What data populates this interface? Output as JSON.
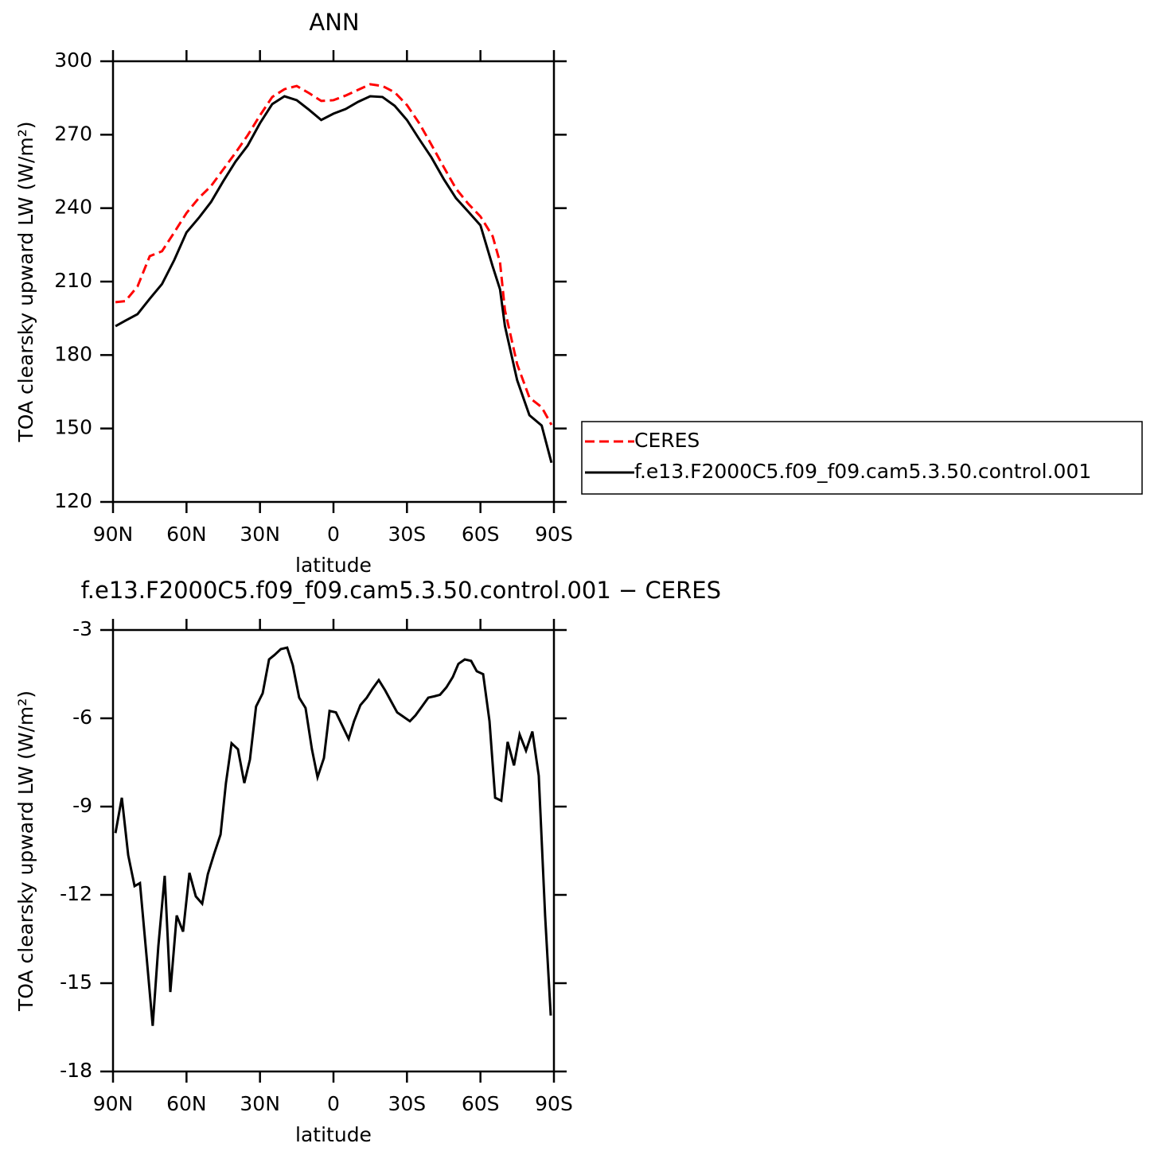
{
  "chart_data": [
    {
      "type": "line",
      "title": "ANN",
      "xlabel": "latitude",
      "ylabel": "TOA clearsky upward LW (W/m²)",
      "xlim": [
        90,
        -90
      ],
      "xticks": [
        {
          "value": 90,
          "label": "90N"
        },
        {
          "value": 60,
          "label": "60N"
        },
        {
          "value": 30,
          "label": "30N"
        },
        0,
        {
          "value": -30,
          "label": "30S"
        },
        {
          "value": -60,
          "label": "60S"
        },
        {
          "value": -90,
          "label": "90S"
        }
      ],
      "ylim": [
        120,
        300
      ],
      "yticks": [
        120,
        150,
        180,
        210,
        240,
        270,
        300
      ],
      "legend": "right",
      "x": [
        89,
        85,
        80,
        75,
        70,
        65,
        60,
        55,
        50,
        45,
        40,
        35,
        30,
        25,
        20,
        15,
        10,
        5,
        0,
        -5,
        -10,
        -15,
        -20,
        -25,
        -30,
        -35,
        -40,
        -45,
        -50,
        -55,
        -60,
        -65,
        -68,
        -70,
        -75,
        -80,
        -85,
        -89
      ],
      "series": [
        {
          "name": "CERES",
          "color": "#ff0000",
          "dash": true,
          "values": [
            201.6,
            202,
            208,
            220.4,
            222.4,
            230.1,
            238,
            244.1,
            249,
            255.8,
            262.6,
            269.8,
            277.9,
            285.4,
            288.6,
            289.9,
            287,
            283.8,
            284.1,
            286,
            288.3,
            290.6,
            289.9,
            287.3,
            282.1,
            274.7,
            265.9,
            256.8,
            248,
            241.8,
            236.6,
            228.5,
            217.8,
            198.3,
            176.2,
            162.6,
            158.7,
            151.5
          ]
        },
        {
          "name": "f.e13.F2000C5.f09_f09.cam5.3.50.control.001",
          "color": "#000000",
          "dash": false,
          "values": [
            191.8,
            194,
            196.7,
            203,
            209,
            218.8,
            230.1,
            236,
            242.5,
            251,
            259,
            265.6,
            274.7,
            282.5,
            285.7,
            284.1,
            280.2,
            276,
            278.6,
            280.5,
            283.4,
            285.7,
            285.4,
            281.8,
            276,
            268.2,
            260.7,
            251.9,
            244.1,
            238.6,
            233,
            216.2,
            206.8,
            191.8,
            169.7,
            155.4,
            151.2,
            136
          ]
        }
      ]
    },
    {
      "type": "line",
      "title": "f.e13.F2000C5.f09_f09.cam5.3.50.control.001 − CERES",
      "xlabel": "latitude",
      "ylabel": "TOA clearsky upward LW (W/m²)",
      "xlim": [
        90,
        -90
      ],
      "xticks": [
        {
          "value": 90,
          "label": "90N"
        },
        {
          "value": 60,
          "label": "60N"
        },
        {
          "value": 30,
          "label": "30N"
        },
        0,
        {
          "value": -30,
          "label": "30S"
        },
        {
          "value": -60,
          "label": "60S"
        },
        {
          "value": -90,
          "label": "90S"
        }
      ],
      "ylim": [
        -18,
        -3
      ],
      "yticks": [
        -18,
        -15,
        -12,
        -9,
        -6,
        -3
      ],
      "x": [
        89,
        86.4,
        83.8,
        81.2,
        79,
        76.4,
        73.8,
        71.5,
        68.9,
        66.6,
        64,
        61.4,
        58.8,
        56.2,
        53.6,
        51.3,
        48.7,
        46.1,
        43.9,
        41.6,
        39,
        36.4,
        34.1,
        31.6,
        28.9,
        26.3,
        24.1,
        21.5,
        18.9,
        16.6,
        14,
        11.4,
        8.8,
        6.5,
        3.9,
        1.6,
        -1,
        -3.6,
        -6.2,
        -8.4,
        -11,
        -13.6,
        -15.9,
        -18.5,
        -21.1,
        -23.7,
        -26,
        -28.6,
        -31.2,
        -33.5,
        -36.1,
        -38.7,
        -41.3,
        -43.5,
        -46.1,
        -48.7,
        -51,
        -53.6,
        -56.2,
        -58.5,
        -61.1,
        -63.7,
        -66,
        -68.5,
        -71.1,
        -73.7,
        -76,
        -78.6,
        -81.2,
        -83.8,
        -86.4,
        -88.7
      ],
      "series": [
        {
          "color": "#000000",
          "dash": false,
          "values": [
            -9.9,
            -8.7,
            -10.65,
            -11.7,
            -11.6,
            -14,
            -16.45,
            -13.75,
            -11.35,
            -15.3,
            -12.7,
            -13.25,
            -11.25,
            -12.05,
            -12.3,
            -11.3,
            -10.6,
            -9.95,
            -8.2,
            -6.85,
            -7.05,
            -8.2,
            -7.4,
            -5.6,
            -5.15,
            -4,
            -3.85,
            -3.65,
            -3.6,
            -4.2,
            -5.3,
            -5.65,
            -7.05,
            -8,
            -7.35,
            -5.75,
            -5.8,
            -6.25,
            -6.7,
            -6.1,
            -5.55,
            -5.3,
            -5,
            -4.7,
            -5.05,
            -5.45,
            -5.8,
            -5.95,
            -6.1,
            -5.9,
            -5.6,
            -5.3,
            -5.25,
            -5.2,
            -4.95,
            -4.6,
            -4.15,
            -4,
            -4.05,
            -4.4,
            -4.5,
            -6.1,
            -8.7,
            -8.8,
            -6.8,
            -7.6,
            -6.55,
            -7.1,
            -6.45,
            -7.95,
            -12.7,
            -16.1
          ]
        }
      ]
    }
  ]
}
